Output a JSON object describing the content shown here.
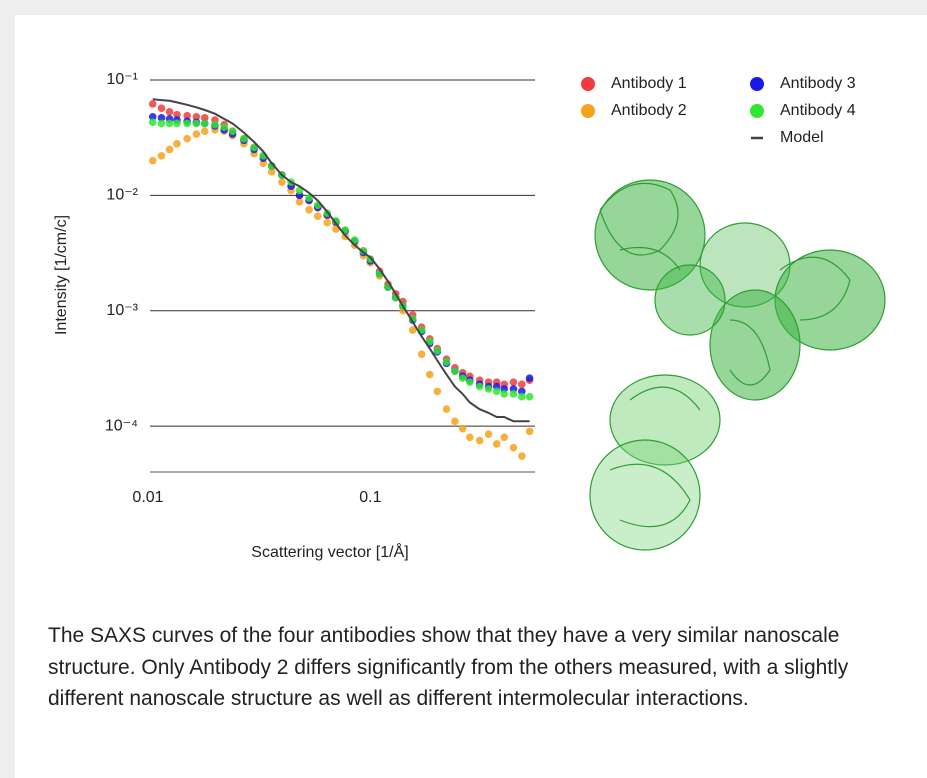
{
  "chart_data": {
    "type": "scatter",
    "xlabel": "Scattering vector [1/Å]",
    "ylabel": "Intensity [1/cm/c]",
    "xscale": "log",
    "yscale": "log",
    "grid": true,
    "legend": "upper right",
    "xlim": [
      0.01,
      0.55
    ],
    "ylim": [
      4e-05,
      0.1
    ],
    "xticks": [
      0.01,
      0.1
    ],
    "yticks": [
      {
        "value": 0.1,
        "label": "10⁻¹"
      },
      {
        "value": 0.01,
        "label": "10⁻²"
      },
      {
        "value": 0.001,
        "label": "10⁻³"
      },
      {
        "value": 0.0001,
        "label": "10⁻⁴"
      }
    ],
    "x": [
      0.0105,
      0.0115,
      0.0125,
      0.0135,
      0.015,
      0.0165,
      0.018,
      0.02,
      0.022,
      0.024,
      0.027,
      0.03,
      0.033,
      0.036,
      0.04,
      0.044,
      0.048,
      0.053,
      0.058,
      0.064,
      0.07,
      0.077,
      0.085,
      0.093,
      0.1,
      0.11,
      0.12,
      0.13,
      0.14,
      0.155,
      0.17,
      0.185,
      0.2,
      0.22,
      0.24,
      0.26,
      0.28,
      0.31,
      0.34,
      0.37,
      0.4,
      0.44,
      0.48,
      0.52
    ],
    "series": [
      {
        "name": "Antibody 1",
        "color": "#f03c3c",
        "style": "marker",
        "values": [
          0.062,
          0.057,
          0.053,
          0.05,
          0.049,
          0.048,
          0.047,
          0.045,
          0.041,
          0.036,
          0.031,
          0.026,
          0.022,
          0.018,
          0.015,
          0.012,
          0.01,
          0.009,
          0.0078,
          0.0067,
          0.0058,
          0.0049,
          0.004,
          0.0033,
          0.0028,
          0.0022,
          0.0017,
          0.0014,
          0.0012,
          0.00092,
          0.00072,
          0.00057,
          0.00047,
          0.00038,
          0.00032,
          0.00029,
          0.00027,
          0.00025,
          0.00024,
          0.00024,
          0.00023,
          0.00024,
          0.00023,
          0.00025
        ]
      },
      {
        "name": "Antibody 2",
        "color": "#f7a21b",
        "style": "marker",
        "values": [
          0.02,
          0.022,
          0.025,
          0.028,
          0.031,
          0.034,
          0.036,
          0.037,
          0.036,
          0.033,
          0.028,
          0.023,
          0.019,
          0.016,
          0.013,
          0.011,
          0.0088,
          0.0075,
          0.0066,
          0.0058,
          0.0051,
          0.0044,
          0.0037,
          0.003,
          0.0026,
          0.002,
          0.0016,
          0.0013,
          0.001,
          0.00068,
          0.00042,
          0.00028,
          0.0002,
          0.00014,
          0.00011,
          9.5e-05,
          8e-05,
          7.5e-05,
          8.5e-05,
          7e-05,
          8e-05,
          6.5e-05,
          5.5e-05,
          9e-05
        ]
      },
      {
        "name": "Antibody 3",
        "color": "#1a1ae6",
        "style": "marker",
        "values": [
          0.048,
          0.047,
          0.046,
          0.045,
          0.044,
          0.043,
          0.042,
          0.04,
          0.037,
          0.034,
          0.03,
          0.025,
          0.021,
          0.018,
          0.015,
          0.012,
          0.01,
          0.0091,
          0.0079,
          0.0068,
          0.0059,
          0.0049,
          0.004,
          0.0032,
          0.0027,
          0.0021,
          0.0016,
          0.0013,
          0.0011,
          0.00083,
          0.00066,
          0.00052,
          0.00044,
          0.00035,
          0.0003,
          0.00027,
          0.00025,
          0.00023,
          0.00022,
          0.00022,
          0.00021,
          0.00021,
          0.0002,
          0.00026
        ]
      },
      {
        "name": "Antibody 4",
        "color": "#2ee82e",
        "style": "marker",
        "values": [
          0.043,
          0.042,
          0.042,
          0.042,
          0.042,
          0.042,
          0.042,
          0.041,
          0.039,
          0.036,
          0.031,
          0.026,
          0.022,
          0.018,
          0.015,
          0.013,
          0.011,
          0.0095,
          0.0082,
          0.007,
          0.006,
          0.005,
          0.0041,
          0.0033,
          0.0028,
          0.0021,
          0.0016,
          0.0013,
          0.0011,
          0.00085,
          0.00068,
          0.00054,
          0.00045,
          0.00036,
          0.0003,
          0.00026,
          0.00024,
          0.00022,
          0.00021,
          0.0002,
          0.00019,
          0.00019,
          0.00018,
          0.00018
        ]
      },
      {
        "name": "Model",
        "color": "#444444",
        "style": "line",
        "values": [
          0.068,
          0.067,
          0.066,
          0.064,
          0.061,
          0.058,
          0.055,
          0.051,
          0.046,
          0.042,
          0.035,
          0.029,
          0.024,
          0.019,
          0.015,
          0.013,
          0.012,
          0.0105,
          0.009,
          0.0072,
          0.0057,
          0.0045,
          0.0037,
          0.0032,
          0.0029,
          0.0023,
          0.0018,
          0.0014,
          0.0011,
          0.0008,
          0.0006,
          0.00047,
          0.00037,
          0.00028,
          0.00022,
          0.00019,
          0.00016,
          0.00014,
          0.00013,
          0.00012,
          0.00012,
          0.00011,
          0.00011,
          0.00011
        ]
      }
    ]
  },
  "caption": "The SAXS curves of the four antibodies show that they have a very similar nanoscale structure. Only Antibody 2 differs significantly from the others measured, with a slightly different nanoscale structure as well as different intermolecular interactions."
}
